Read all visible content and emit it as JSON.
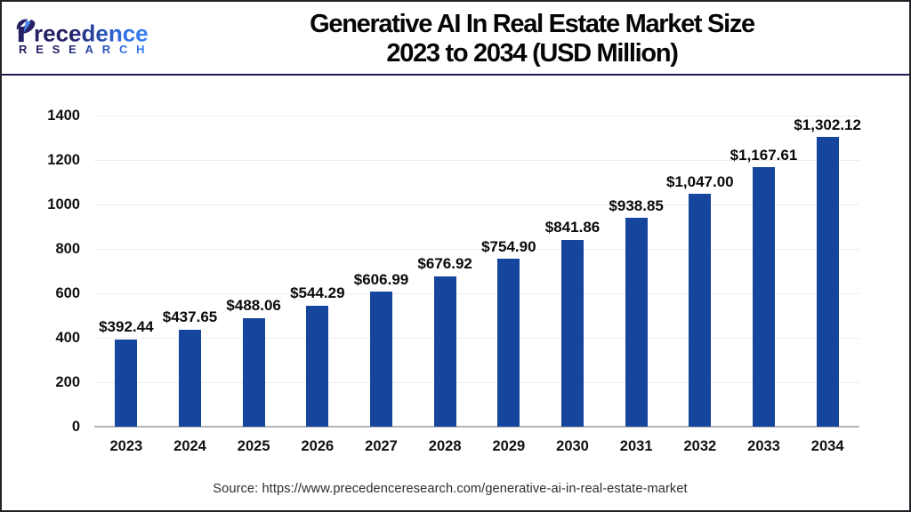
{
  "header": {
    "logo": {
      "brand_name": "Precedence",
      "brand_name_after_p": "recedence",
      "brand_subtitle": "RESEARCH"
    },
    "title_line1": "Generative AI In Real Estate Market Size",
    "title_line2": "2023 to 2034 (USD Million)"
  },
  "footer": {
    "source_text": "Source: https://www.precedenceresearch.com/generative-ai-in-real-estate-market"
  },
  "colors": {
    "bar": "#15459c",
    "header_divider": "#1b1b52",
    "gridline": "#ededed",
    "axis_line": "#b5b5b5",
    "title_text": "#050505",
    "logo_navy": "#232064",
    "logo_blue": "#3575e8",
    "logo_leaf_triangle": "#4a86e8"
  },
  "chart_data": {
    "type": "bar",
    "title": "Generative AI In Real Estate Market Size 2023 to 2034 (USD Million)",
    "xlabel": "",
    "ylabel": "",
    "categories": [
      "2023",
      "2024",
      "2025",
      "2026",
      "2027",
      "2028",
      "2029",
      "2030",
      "2031",
      "2032",
      "2033",
      "2034"
    ],
    "values": [
      392.44,
      437.65,
      488.06,
      544.29,
      606.99,
      676.92,
      754.9,
      841.86,
      938.85,
      1047.0,
      1167.61,
      1302.12
    ],
    "value_labels": [
      "$392.44",
      "$437.65",
      "$488.06",
      "$544.29",
      "$606.99",
      "$676.92",
      "$754.90",
      "$841.86",
      "$938.85",
      "$1,047.00",
      "$1,167.61",
      "$1,302.12"
    ],
    "y_ticks": [
      0,
      200,
      400,
      600,
      800,
      1000,
      1200,
      1400
    ],
    "ylim": [
      0,
      1400
    ],
    "grid": "horizontal",
    "legend": "none",
    "bar_color": "#15459c"
  }
}
